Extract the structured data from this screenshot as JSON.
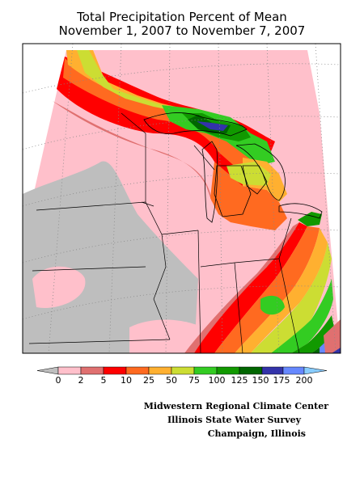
{
  "title_line1": "Total Precipitation Percent of Mean",
  "title_line2": "November 1, 2007 to November 7, 2007",
  "legend": {
    "ticks": [
      "0",
      "2",
      "5",
      "10",
      "25",
      "50",
      "75",
      "100",
      "125",
      "150",
      "175",
      "200"
    ],
    "colors": {
      "below_min": "#bebebe",
      "bins": [
        "#ffc0cb",
        "#e07070",
        "#ff0000",
        "#ff6a20",
        "#ffb030",
        "#ccdd33",
        "#33cc22",
        "#119900",
        "#006600",
        "#3333aa",
        "#6688ff"
      ],
      "above_max": "#88ccff"
    }
  },
  "credits": [
    "Midwestern Regional Climate Center",
    "Illinois State Water Survey",
    "Champaign, Illinois"
  ]
}
